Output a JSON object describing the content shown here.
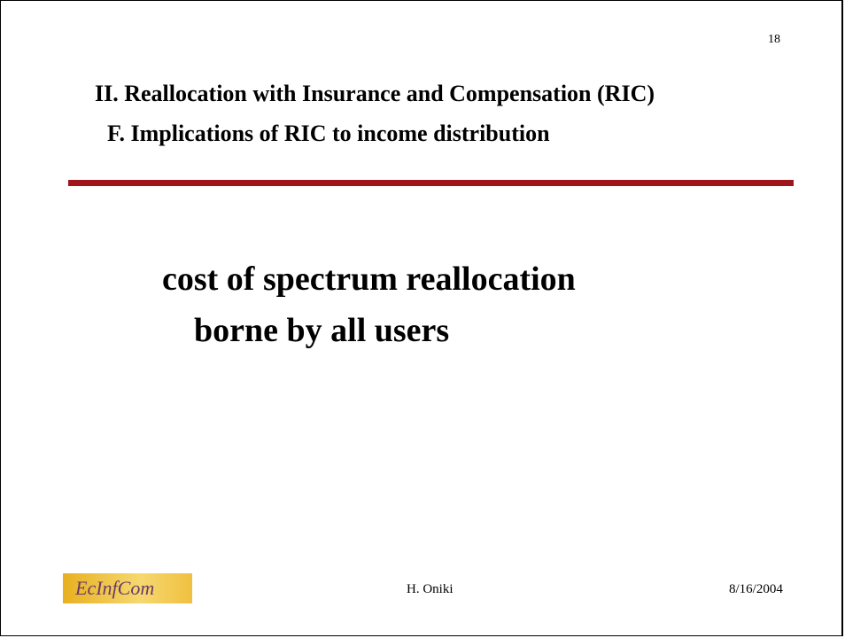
{
  "slide": {
    "page_number": "18",
    "title": "II. Reallocation with Insurance and Compensation (RIC)",
    "subtitle": "F. Implications of RIC to income distribution",
    "body": [
      "cost of spectrum reallocation",
      "borne by all users"
    ],
    "logo": "EcInfCom",
    "author": "H. Oniki",
    "date": "8/16/2004"
  }
}
